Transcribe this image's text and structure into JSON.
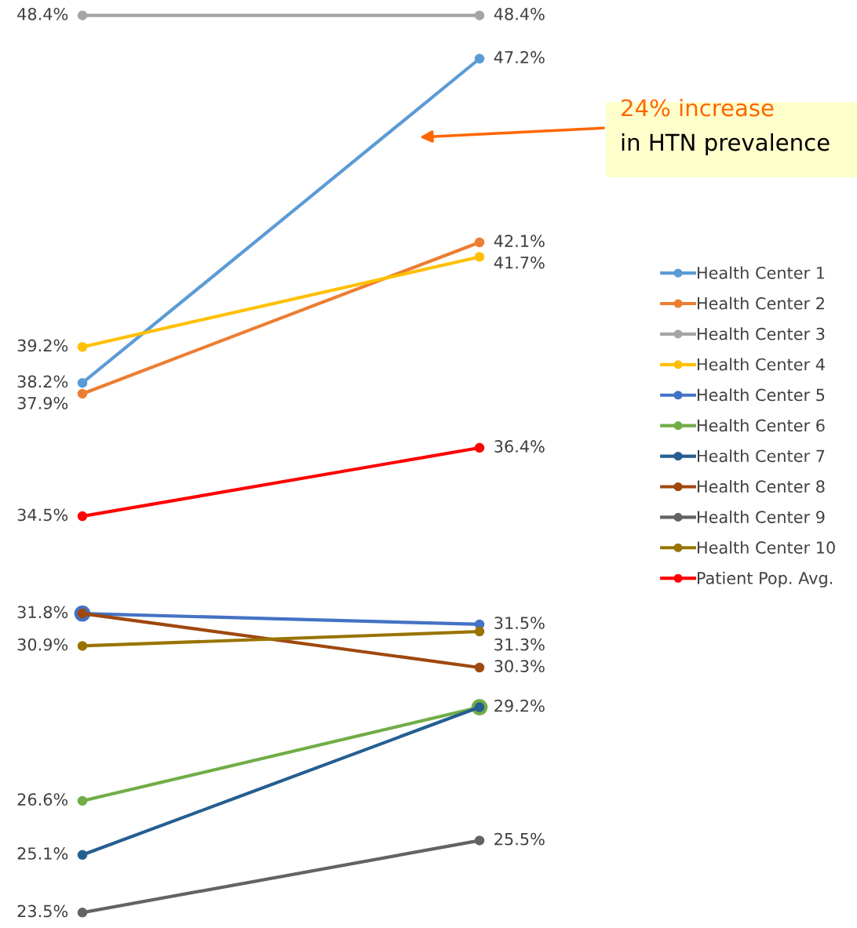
{
  "chart_data": {
    "type": "line",
    "categories": [
      null,
      null
    ],
    "marker": "circle",
    "line_style": "solid",
    "legend": "right",
    "series": [
      {
        "name": "Health Center 1",
        "color": "#5b9bd5",
        "values": [
          38.2,
          47.2
        ],
        "value_labels": [
          "38.2%",
          "47.2%"
        ]
      },
      {
        "name": "Health Center 2",
        "color": "#ed7d31",
        "values": [
          37.9,
          42.1
        ],
        "value_labels": [
          "37.9%",
          "42.1%"
        ]
      },
      {
        "name": "Health Center 3",
        "color": "#a5a5a5",
        "values": [
          48.4,
          48.4
        ],
        "value_labels": [
          "48.4%",
          "48.4%"
        ]
      },
      {
        "name": "Health Center 4",
        "color": "#ffc000",
        "values": [
          39.2,
          41.7
        ],
        "value_labels": [
          "39.2%",
          "41.7%"
        ]
      },
      {
        "name": "Health Center 5",
        "color": "#4472c4",
        "values": [
          31.8,
          31.5
        ],
        "value_labels": [
          null,
          "31.5%"
        ]
      },
      {
        "name": "Health Center 6",
        "color": "#70ad47",
        "values": [
          26.6,
          29.2
        ],
        "value_labels": [
          "26.6%",
          null
        ]
      },
      {
        "name": "Health Center 7",
        "color": "#255e91",
        "values": [
          25.1,
          29.2
        ],
        "value_labels": [
          "25.1%",
          "29.2%"
        ]
      },
      {
        "name": "Health Center 8",
        "color": "#9e480e",
        "values": [
          31.8,
          30.3
        ],
        "value_labels": [
          "31.8%",
          "30.3%"
        ]
      },
      {
        "name": "Health Center 9",
        "color": "#636363",
        "values": [
          23.5,
          25.5
        ],
        "value_labels": [
          "23.5%",
          "25.5%"
        ]
      },
      {
        "name": "Health Center 10",
        "color": "#997300",
        "values": [
          30.9,
          31.3
        ],
        "value_labels": [
          "30.9%",
          "31.3%"
        ]
      },
      {
        "name": "Patient Pop. Avg.",
        "color": "#ff0000",
        "values": [
          34.5,
          36.4
        ],
        "value_labels": [
          "34.5%",
          "36.4%"
        ]
      }
    ],
    "annotations": [
      "24% increase",
      "in HTN prevalence"
    ]
  }
}
